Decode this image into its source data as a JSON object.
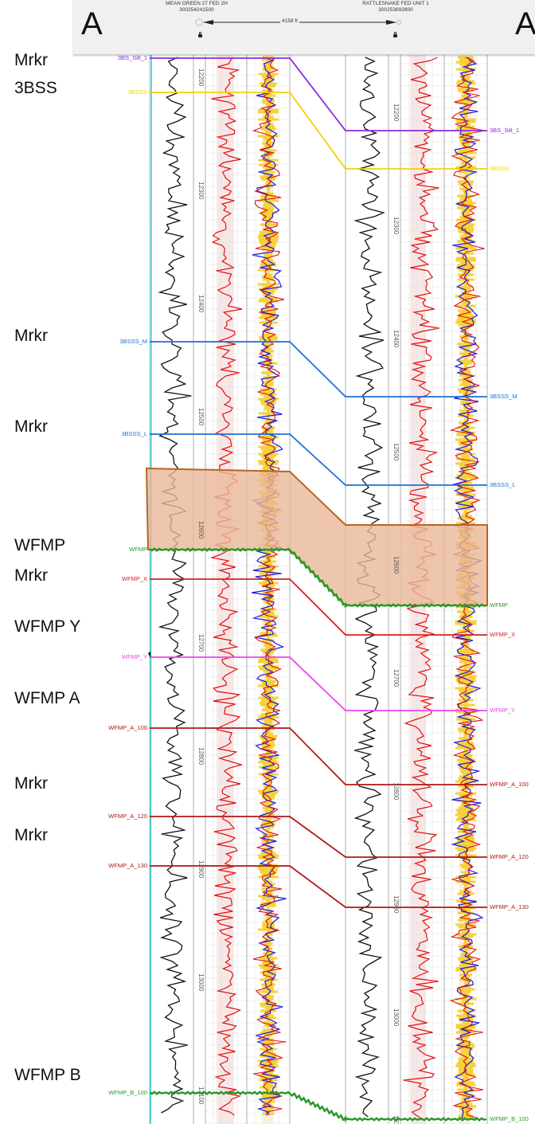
{
  "header": {
    "left_letter": "A",
    "right_letter": "A'",
    "well_left": {
      "name": "MEAN GREEN 27 FED 2H",
      "api": "300254241500"
    },
    "well_right": {
      "name": "RATTLESNAKE FED UNIT 1",
      "api": "300253692800"
    },
    "distance": "4158 ft"
  },
  "side_labels": [
    "Mrkr",
    "3BSS",
    "Mrkr",
    "Mrkr",
    "WFMP",
    "Mrkr",
    "WFMP Y",
    "WFMP A",
    "Mrkr",
    "Mrkr",
    "WFMP B"
  ],
  "markers": [
    {
      "name": "3BS_Silt_1",
      "color": "#8a2be2"
    },
    {
      "name": "3BSSS",
      "color": "#f2d200"
    },
    {
      "name": "3BSSS_M",
      "color": "#1e6fd9"
    },
    {
      "name": "3BSSS_L",
      "color": "#1e6fd9"
    },
    {
      "name": "WFMP",
      "color": "#2a9a2a"
    },
    {
      "name": "WFMP_X",
      "color": "#d42020"
    },
    {
      "name": "WFMP_Y",
      "color": "#ee44ee"
    },
    {
      "name": "WFMP_A_100",
      "color": "#b01818"
    },
    {
      "name": "WFMP_A_120",
      "color": "#b01818"
    },
    {
      "name": "WFMP_A_130",
      "color": "#b01818"
    },
    {
      "name": "WFMP_B_100",
      "color": "#2a9a2a"
    }
  ],
  "depth_labels": {
    "left": [
      "12200",
      "12300",
      "12400",
      "12500",
      "12600",
      "12700",
      "12800",
      "12900",
      "13000",
      "13100"
    ],
    "right": [
      "12200",
      "12300",
      "12400",
      "12500",
      "12600",
      "12700",
      "12800",
      "12900",
      "13000",
      "131"
    ]
  },
  "colors": {
    "zone_fill": "#e8b898",
    "zone_stroke": "#b8651f",
    "gamma": "#111111",
    "resistivity": "#e01010",
    "neutron": "#1a1ae0",
    "density_fill": "#f5d23a",
    "caliper": "#22c8d8"
  }
}
